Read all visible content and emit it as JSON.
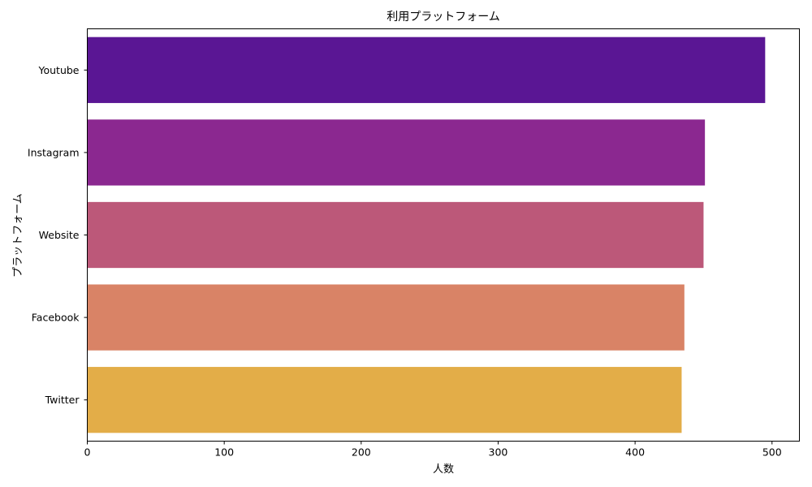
{
  "chart_data": {
    "type": "bar",
    "orientation": "horizontal",
    "title": "利用プラットフォーム",
    "xlabel": "人数",
    "ylabel": "プラットフォーム",
    "categories": [
      "Youtube",
      "Instagram",
      "Website",
      "Facebook",
      "Twitter"
    ],
    "values": [
      495,
      451,
      450,
      436,
      434
    ],
    "colors": [
      "#5a1694",
      "#8b2890",
      "#bc5879",
      "#d98366",
      "#e3ad48"
    ],
    "xlim": [
      0,
      520
    ],
    "xticks": [
      0,
      100,
      200,
      300,
      400,
      500
    ],
    "grid": false
  }
}
